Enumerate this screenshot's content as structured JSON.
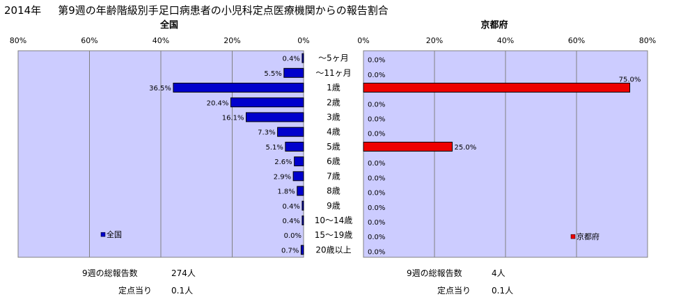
{
  "title": {
    "year": "2014年",
    "text": "第9週の年齢階級別手足口病患者の小児科定点医療機関からの報告割合"
  },
  "colors": {
    "plot_bg": "#ccccff",
    "national_bar": "#0000cc",
    "kyoto_bar": "#ee0000",
    "grid": "#808080"
  },
  "chart_data": [
    {
      "type": "bar",
      "orientation": "horizontal",
      "direction": "right-to-left",
      "title": "全国",
      "categories": [
        "～5ヶ月",
        "～11ヶ月",
        "1歳",
        "2歳",
        "3歳",
        "4歳",
        "5歳",
        "6歳",
        "7歳",
        "8歳",
        "9歳",
        "10～14歳",
        "15～19歳",
        "20歳以上"
      ],
      "series": [
        {
          "name": "全国",
          "values": [
            0.4,
            5.5,
            36.5,
            20.4,
            16.1,
            7.3,
            5.1,
            2.6,
            2.9,
            1.8,
            0.4,
            0.4,
            0.0,
            0.7
          ],
          "labels": [
            "0.4%",
            "5.5%",
            "36.5%",
            "20.4%",
            "16.1%",
            "7.3%",
            "5.1%",
            "2.6%",
            "2.9%",
            "1.8%",
            "0.4%",
            "0.4%",
            "0.0%",
            "0.7%"
          ]
        }
      ],
      "xlim": [
        0,
        80
      ],
      "ticks": [
        "80%",
        "60%",
        "40%",
        "20%",
        "0%"
      ],
      "legend": "bottom-left",
      "grid": true
    },
    {
      "type": "bar",
      "orientation": "horizontal",
      "direction": "left-to-right",
      "title": "京都府",
      "categories": [
        "～5ヶ月",
        "～11ヶ月",
        "1歳",
        "2歳",
        "3歳",
        "4歳",
        "5歳",
        "6歳",
        "7歳",
        "8歳",
        "9歳",
        "10～14歳",
        "15～19歳",
        "20歳以上"
      ],
      "series": [
        {
          "name": "京都府",
          "values": [
            0.0,
            0.0,
            75.0,
            0.0,
            0.0,
            0.0,
            25.0,
            0.0,
            0.0,
            0.0,
            0.0,
            0.0,
            0.0,
            0.0
          ],
          "labels": [
            "0.0%",
            "0.0%",
            "75.0%",
            "0.0%",
            "0.0%",
            "0.0%",
            "25.0%",
            "0.0%",
            "0.0%",
            "0.0%",
            "0.0%",
            "0.0%",
            "0.0%",
            "0.0%"
          ]
        }
      ],
      "xlim": [
        0,
        80
      ],
      "ticks": [
        "0%",
        "20%",
        "40%",
        "60%",
        "80%"
      ],
      "legend": "bottom-right",
      "grid": true
    }
  ],
  "stats": {
    "national": {
      "total_label": "9週の総報告数",
      "total_value": "274人",
      "per_label": "定点当り",
      "per_value": "0.1人"
    },
    "kyoto": {
      "total_label": "9週の総報告数",
      "total_value": "4人",
      "per_label": "定点当り",
      "per_value": "0.1人"
    }
  }
}
